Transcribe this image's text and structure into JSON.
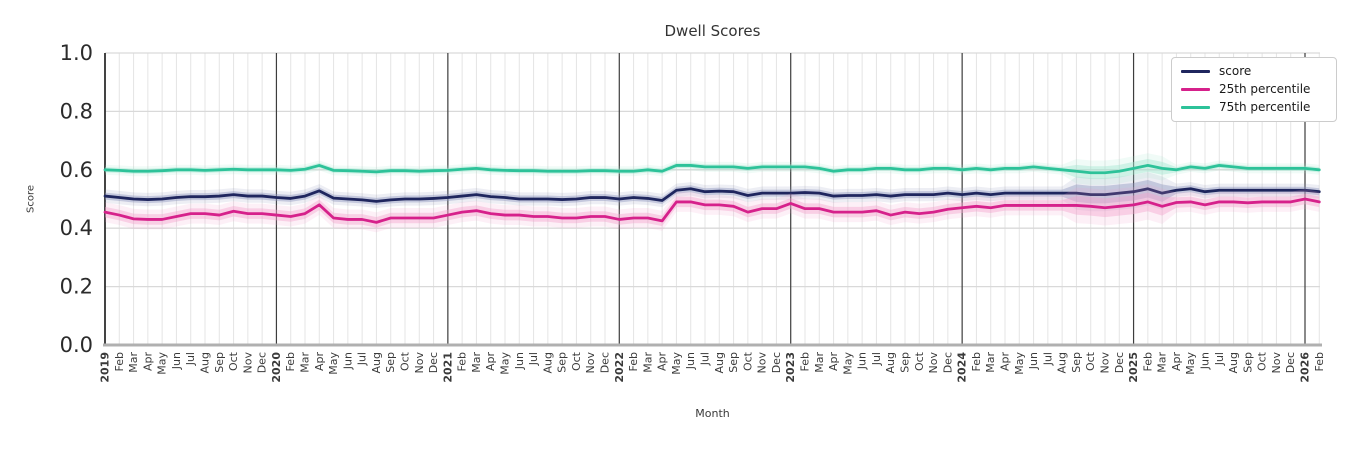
{
  "title": "Dwell Scores",
  "axes": {
    "x_label": "Month",
    "y_label": "Score",
    "y_ticks": [
      "0.0",
      "0.2",
      "0.4",
      "0.6",
      "0.8",
      "1.0"
    ]
  },
  "legend": {
    "items": [
      {
        "label": "score",
        "color": "#1f265e"
      },
      {
        "label": "25th percentile",
        "color": "#d6218b"
      },
      {
        "label": "75th percentile",
        "color": "#2dc299"
      }
    ]
  },
  "chart_data": {
    "type": "line",
    "title": "Dwell Scores",
    "xlabel": "Month",
    "ylabel": "Score",
    "ylim": [
      0,
      1
    ],
    "grid": true,
    "legend_position": "upper right",
    "y_tick_values": [
      0,
      0.2,
      0.4,
      0.6,
      0.8,
      1.0
    ],
    "year_tick_indices": [
      0,
      12,
      24,
      36,
      48,
      60,
      72,
      84
    ],
    "x": [
      "2019",
      "Feb",
      "Mar",
      "Apr",
      "May",
      "Jun",
      "Jul",
      "Aug",
      "Sep",
      "Oct",
      "Nov",
      "Dec",
      "2020",
      "Feb",
      "Mar",
      "Apr",
      "May",
      "Jun",
      "Jul",
      "Aug",
      "Sep",
      "Oct",
      "Nov",
      "Dec",
      "2021",
      "Feb",
      "Mar",
      "Apr",
      "May",
      "Jun",
      "Jul",
      "Aug",
      "Sep",
      "Oct",
      "Nov",
      "Dec",
      "2022",
      "Feb",
      "Mar",
      "Apr",
      "May",
      "Jun",
      "Jul",
      "Aug",
      "Sep",
      "Oct",
      "Nov",
      "Dec",
      "2023",
      "Feb",
      "Mar",
      "Apr",
      "May",
      "Jun",
      "Jul",
      "Aug",
      "Sep",
      "Oct",
      "Nov",
      "Dec",
      "2024",
      "Feb",
      "Mar",
      "Apr",
      "May",
      "Jun",
      "Jul",
      "Aug",
      "Sep",
      "Oct",
      "Nov",
      "Dec",
      "2025",
      "Feb",
      "Mar",
      "Apr",
      "May",
      "Jun",
      "Jul",
      "Aug",
      "Sep",
      "Oct",
      "Nov",
      "Dec",
      "2026",
      "Feb"
    ],
    "series": [
      {
        "name": "score",
        "color": "#1f265e",
        "band_color": "#8d93bd",
        "band_width": 0.012,
        "band_wide": {
          "from": 68,
          "to": 74,
          "width": 0.03
        },
        "values": [
          0.51,
          0.505,
          0.5,
          0.498,
          0.5,
          0.505,
          0.508,
          0.508,
          0.51,
          0.515,
          0.51,
          0.51,
          0.505,
          0.502,
          0.51,
          0.528,
          0.503,
          0.5,
          0.497,
          0.492,
          0.497,
          0.5,
          0.5,
          0.502,
          0.505,
          0.51,
          0.515,
          0.508,
          0.505,
          0.5,
          0.5,
          0.5,
          0.498,
          0.5,
          0.505,
          0.505,
          0.5,
          0.505,
          0.502,
          0.495,
          0.53,
          0.535,
          0.525,
          0.527,
          0.525,
          0.512,
          0.52,
          0.52,
          0.52,
          0.522,
          0.52,
          0.51,
          0.512,
          0.512,
          0.515,
          0.51,
          0.515,
          0.515,
          0.515,
          0.52,
          0.515,
          0.52,
          0.515,
          0.52,
          0.52,
          0.52,
          0.52,
          0.52,
          0.52,
          0.515,
          0.515,
          0.52,
          0.525,
          0.535,
          0.52,
          0.53,
          0.535,
          0.525,
          0.53,
          0.53,
          0.53,
          0.53,
          0.53,
          0.53,
          0.53,
          0.525
        ]
      },
      {
        "name": "25th percentile",
        "color": "#d6218b",
        "band_color": "#f2a2cc",
        "band_width": 0.018,
        "band_wide": {
          "from": 68,
          "to": 74,
          "width": 0.032
        },
        "values": [
          0.455,
          0.445,
          0.432,
          0.43,
          0.43,
          0.44,
          0.45,
          0.45,
          0.445,
          0.458,
          0.45,
          0.45,
          0.445,
          0.44,
          0.45,
          0.48,
          0.435,
          0.43,
          0.43,
          0.42,
          0.435,
          0.435,
          0.435,
          0.435,
          0.445,
          0.455,
          0.46,
          0.45,
          0.445,
          0.445,
          0.44,
          0.44,
          0.435,
          0.435,
          0.44,
          0.44,
          0.43,
          0.435,
          0.435,
          0.425,
          0.49,
          0.49,
          0.48,
          0.48,
          0.475,
          0.455,
          0.467,
          0.467,
          0.485,
          0.467,
          0.467,
          0.455,
          0.455,
          0.455,
          0.46,
          0.445,
          0.455,
          0.45,
          0.455,
          0.465,
          0.47,
          0.475,
          0.47,
          0.478,
          0.478,
          0.478,
          0.478,
          0.478,
          0.478,
          0.475,
          0.47,
          0.475,
          0.48,
          0.49,
          0.475,
          0.488,
          0.49,
          0.48,
          0.49,
          0.49,
          0.487,
          0.49,
          0.49,
          0.49,
          0.5,
          0.49
        ]
      },
      {
        "name": "75th percentile",
        "color": "#2dc299",
        "band_color": "#9fe5cf",
        "band_width": 0.009,
        "band_wide": {
          "from": 68,
          "to": 74,
          "width": 0.022
        },
        "values": [
          0.6,
          0.598,
          0.595,
          0.595,
          0.597,
          0.6,
          0.6,
          0.598,
          0.6,
          0.602,
          0.6,
          0.6,
          0.6,
          0.598,
          0.602,
          0.615,
          0.598,
          0.597,
          0.595,
          0.593,
          0.597,
          0.597,
          0.595,
          0.597,
          0.598,
          0.602,
          0.605,
          0.6,
          0.598,
          0.597,
          0.597,
          0.595,
          0.595,
          0.595,
          0.597,
          0.597,
          0.595,
          0.595,
          0.6,
          0.595,
          0.615,
          0.615,
          0.61,
          0.61,
          0.61,
          0.605,
          0.61,
          0.61,
          0.61,
          0.61,
          0.605,
          0.595,
          0.6,
          0.6,
          0.605,
          0.605,
          0.6,
          0.6,
          0.605,
          0.605,
          0.6,
          0.605,
          0.6,
          0.605,
          0.605,
          0.61,
          0.605,
          0.6,
          0.595,
          0.59,
          0.59,
          0.595,
          0.605,
          0.615,
          0.605,
          0.6,
          0.61,
          0.605,
          0.615,
          0.61,
          0.605,
          0.605,
          0.605,
          0.605,
          0.605,
          0.6
        ]
      }
    ]
  }
}
